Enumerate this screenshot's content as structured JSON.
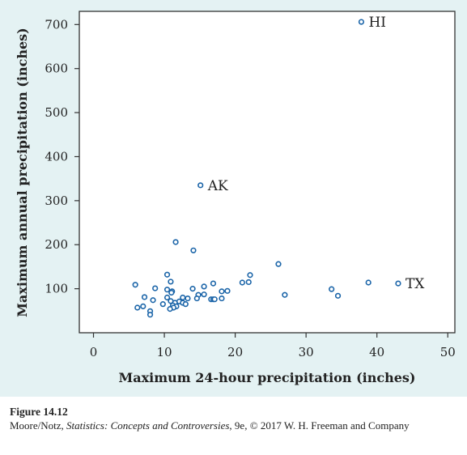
{
  "chart_data": {
    "type": "scatter",
    "xlabel": "Maximum 24-hour precipitation (inches)",
    "ylabel": "Maximum annual precipitation (inches)",
    "xlim": [
      -2,
      51
    ],
    "ylim": [
      0,
      730
    ],
    "xticks": [
      0,
      10,
      20,
      30,
      40,
      50
    ],
    "yticks": [
      100,
      200,
      300,
      400,
      500,
      600,
      700
    ],
    "grid": false,
    "marker_color": "#1a64a8",
    "points": [
      {
        "x": 37.8,
        "y": 706,
        "label": "HI"
      },
      {
        "x": 15.1,
        "y": 335,
        "label": "AK"
      },
      {
        "x": 43.0,
        "y": 112,
        "label": "TX"
      },
      {
        "x": 11.6,
        "y": 206
      },
      {
        "x": 14.1,
        "y": 187
      },
      {
        "x": 26.1,
        "y": 156
      },
      {
        "x": 10.4,
        "y": 132
      },
      {
        "x": 22.1,
        "y": 131
      },
      {
        "x": 10.9,
        "y": 116
      },
      {
        "x": 21.0,
        "y": 114
      },
      {
        "x": 21.9,
        "y": 115
      },
      {
        "x": 16.9,
        "y": 112
      },
      {
        "x": 38.8,
        "y": 114
      },
      {
        "x": 5.9,
        "y": 109
      },
      {
        "x": 15.6,
        "y": 105
      },
      {
        "x": 8.7,
        "y": 101
      },
      {
        "x": 33.6,
        "y": 99
      },
      {
        "x": 10.4,
        "y": 98
      },
      {
        "x": 14.0,
        "y": 100
      },
      {
        "x": 11.1,
        "y": 94
      },
      {
        "x": 11.0,
        "y": 91
      },
      {
        "x": 18.1,
        "y": 94
      },
      {
        "x": 18.9,
        "y": 95
      },
      {
        "x": 15.6,
        "y": 87
      },
      {
        "x": 14.8,
        "y": 86
      },
      {
        "x": 27.0,
        "y": 86
      },
      {
        "x": 34.5,
        "y": 84
      },
      {
        "x": 7.2,
        "y": 81
      },
      {
        "x": 10.4,
        "y": 80
      },
      {
        "x": 12.6,
        "y": 80
      },
      {
        "x": 13.3,
        "y": 78
      },
      {
        "x": 14.6,
        "y": 78
      },
      {
        "x": 16.6,
        "y": 76
      },
      {
        "x": 16.9,
        "y": 76
      },
      {
        "x": 18.1,
        "y": 78
      },
      {
        "x": 17.1,
        "y": 76
      },
      {
        "x": 8.4,
        "y": 74
      },
      {
        "x": 10.9,
        "y": 72
      },
      {
        "x": 12.1,
        "y": 71
      },
      {
        "x": 11.5,
        "y": 68
      },
      {
        "x": 12.6,
        "y": 68
      },
      {
        "x": 13.0,
        "y": 65
      },
      {
        "x": 9.8,
        "y": 65
      },
      {
        "x": 11.2,
        "y": 62
      },
      {
        "x": 11.7,
        "y": 60
      },
      {
        "x": 11.3,
        "y": 57
      },
      {
        "x": 7.0,
        "y": 60
      },
      {
        "x": 6.2,
        "y": 57
      },
      {
        "x": 10.8,
        "y": 54
      },
      {
        "x": 8.0,
        "y": 49
      },
      {
        "x": 8.0,
        "y": 41
      }
    ]
  },
  "caption": {
    "title": "Figure 14.12",
    "credit_prefix": "Moore/Notz, ",
    "credit_book": "Statistics: Concepts and Controversies",
    "credit_suffix": ", 9e, © 2017 W. H. Freeman and Company"
  }
}
